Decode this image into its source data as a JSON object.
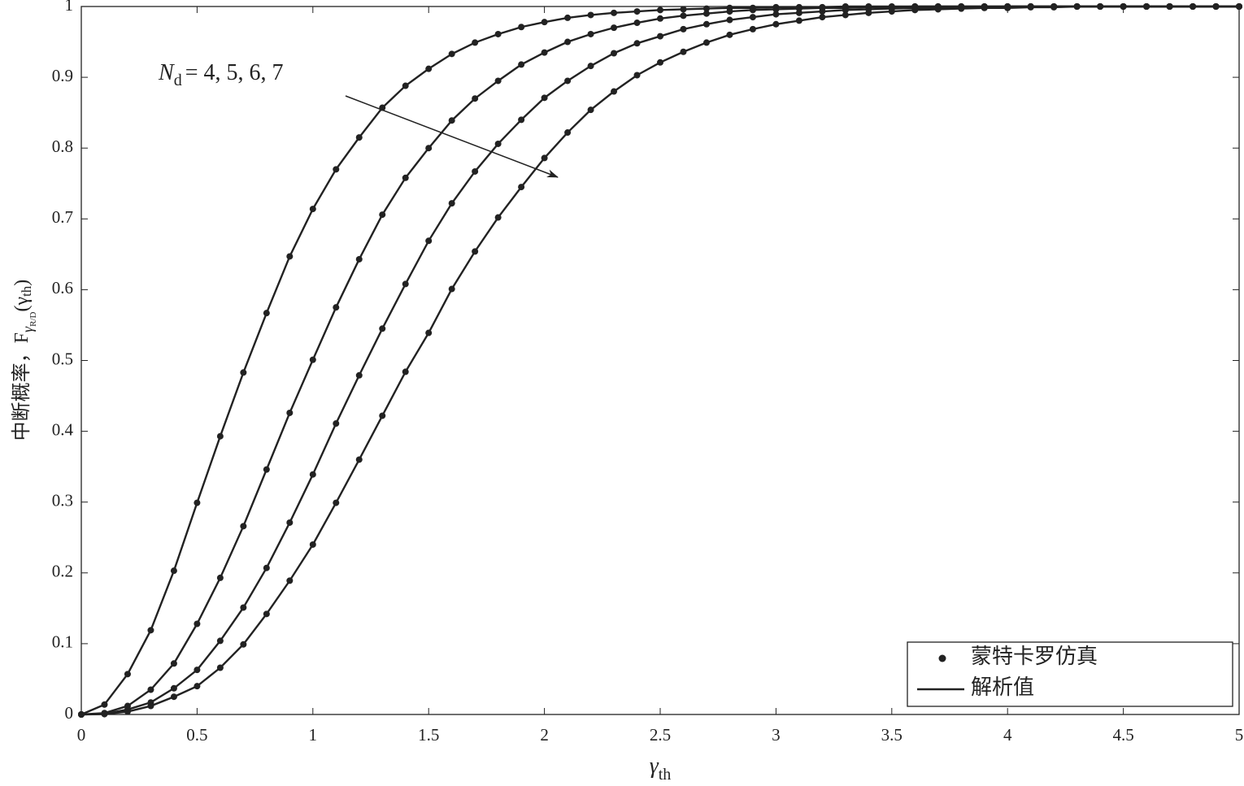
{
  "chart_data": {
    "type": "line",
    "xlabel": [
      "γ",
      "th"
    ],
    "ylabel": [
      "中断概率，F",
      "γ",
      "R/D",
      "(γ",
      "th",
      ")"
    ],
    "annotation": {
      "symbol": "N",
      "subscript": "d",
      "text": "= 4, 5, 6, 7"
    },
    "xlim": [
      0,
      5
    ],
    "ylim": [
      0,
      1
    ],
    "xticks": [
      0,
      0.5,
      1,
      1.5,
      2,
      2.5,
      3,
      3.5,
      4,
      4.5,
      5
    ],
    "yticks": [
      0,
      0.1,
      0.2,
      0.3,
      0.4,
      0.5,
      0.6,
      0.7,
      0.8,
      0.9,
      1
    ],
    "grid": false,
    "legend_position": "lower right",
    "legend_entries": [
      {
        "label": "蒙特卡罗仿真",
        "marker": "dot"
      },
      {
        "label": "解析值",
        "marker": "line"
      }
    ],
    "color": "#222222",
    "x": [
      0,
      0.1,
      0.2,
      0.3,
      0.4,
      0.5,
      0.6,
      0.7,
      0.8,
      0.9,
      1,
      1.1,
      1.2,
      1.3,
      1.4,
      1.5,
      1.6,
      1.7,
      1.8,
      1.9,
      2,
      2.1,
      2.2,
      2.3,
      2.4,
      2.5,
      2.6,
      2.7,
      2.8,
      2.9,
      3,
      3.1,
      3.2,
      3.3,
      3.4,
      3.5,
      3.6,
      3.7,
      3.8,
      3.9,
      4,
      4.1,
      4.2,
      4.3,
      4.4,
      4.5,
      4.6,
      4.7,
      4.8,
      4.9,
      5
    ],
    "series": [
      {
        "values": [
          0,
          0.014,
          0.057,
          0.119,
          0.203,
          0.299,
          0.393,
          0.483,
          0.567,
          0.647,
          0.714,
          0.77,
          0.815,
          0.857,
          0.888,
          0.912,
          0.933,
          0.949,
          0.961,
          0.971,
          0.978,
          0.984,
          0.988,
          0.991,
          0.993,
          0.995,
          0.996,
          0.997,
          0.998,
          0.998,
          0.999,
          0.999,
          0.999,
          1,
          1,
          1,
          1,
          1,
          1,
          1,
          1,
          1,
          1,
          1,
          1,
          1,
          1,
          1,
          1,
          1,
          1
        ]
      },
      {
        "values": [
          0,
          0.002,
          0.012,
          0.035,
          0.072,
          0.128,
          0.193,
          0.266,
          0.346,
          0.426,
          0.501,
          0.575,
          0.643,
          0.706,
          0.758,
          0.8,
          0.839,
          0.87,
          0.895,
          0.918,
          0.935,
          0.95,
          0.961,
          0.97,
          0.977,
          0.983,
          0.987,
          0.99,
          0.993,
          0.995,
          0.996,
          0.997,
          0.998,
          0.998,
          0.999,
          0.999,
          1,
          1,
          1,
          1,
          1,
          1,
          1,
          1,
          1,
          1,
          1,
          1,
          1,
          1,
          1
        ]
      },
      {
        "values": [
          0,
          0.001,
          0.007,
          0.017,
          0.037,
          0.063,
          0.104,
          0.151,
          0.207,
          0.271,
          0.339,
          0.411,
          0.479,
          0.545,
          0.608,
          0.669,
          0.722,
          0.767,
          0.806,
          0.84,
          0.871,
          0.895,
          0.916,
          0.934,
          0.948,
          0.958,
          0.968,
          0.975,
          0.981,
          0.985,
          0.989,
          0.991,
          0.993,
          0.995,
          0.996,
          0.997,
          0.998,
          0.998,
          0.999,
          0.999,
          1,
          1,
          1,
          1,
          1,
          1,
          1,
          1,
          1,
          1,
          1
        ]
      },
      {
        "values": [
          0,
          0.0005,
          0.004,
          0.012,
          0.025,
          0.04,
          0.066,
          0.099,
          0.142,
          0.189,
          0.24,
          0.299,
          0.36,
          0.422,
          0.484,
          0.539,
          0.601,
          0.654,
          0.702,
          0.745,
          0.786,
          0.822,
          0.854,
          0.88,
          0.903,
          0.921,
          0.936,
          0.949,
          0.96,
          0.968,
          0.975,
          0.98,
          0.985,
          0.988,
          0.991,
          0.993,
          0.995,
          0.996,
          0.997,
          0.998,
          0.998,
          0.999,
          0.999,
          1,
          1,
          1,
          1,
          1,
          1,
          1,
          1
        ]
      }
    ]
  }
}
